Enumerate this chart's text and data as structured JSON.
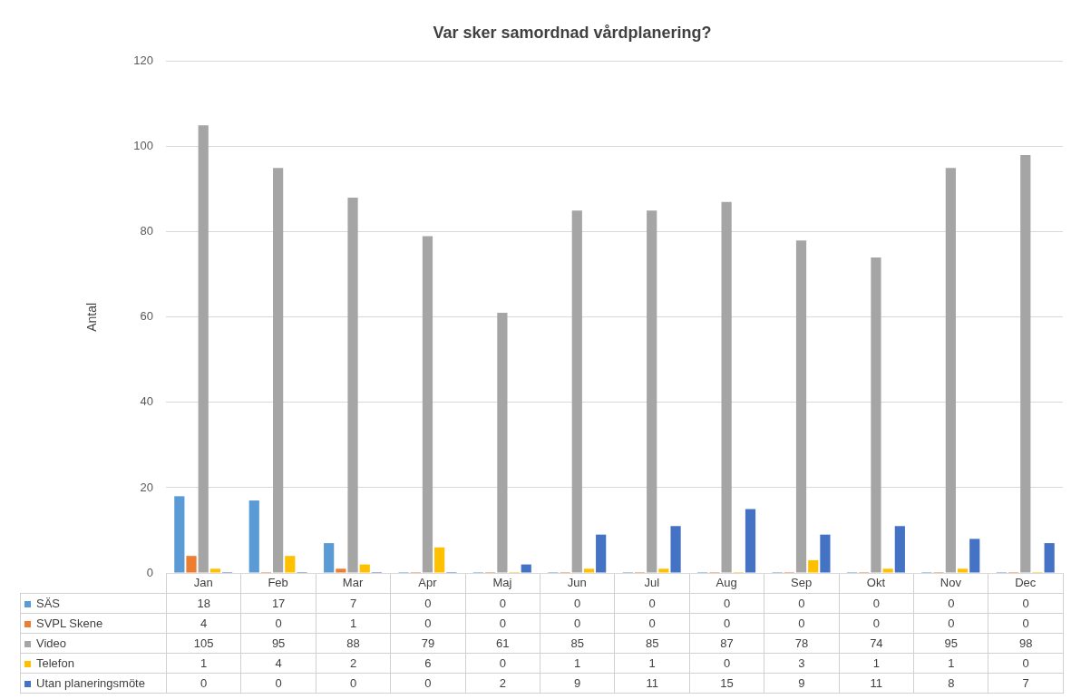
{
  "chart_data": {
    "type": "bar",
    "title": "Var sker samordnad vårdplanering?",
    "ylabel": "Antal",
    "categories": [
      "Jan",
      "Feb",
      "Mar",
      "Apr",
      "Maj",
      "Jun",
      "Jul",
      "Aug",
      "Sep",
      "Okt",
      "Nov",
      "Dec"
    ],
    "series": [
      {
        "name": "SÄS",
        "color": "#5b9bd5",
        "values": [
          18,
          17,
          7,
          0,
          0,
          0,
          0,
          0,
          0,
          0,
          0,
          0
        ]
      },
      {
        "name": "SVPL Skene",
        "color": "#ed7d31",
        "values": [
          4,
          0,
          1,
          0,
          0,
          0,
          0,
          0,
          0,
          0,
          0,
          0
        ]
      },
      {
        "name": "Video",
        "color": "#a5a5a5",
        "values": [
          105,
          95,
          88,
          79,
          61,
          85,
          85,
          87,
          78,
          74,
          95,
          98
        ]
      },
      {
        "name": "Telefon",
        "color": "#ffc000",
        "values": [
          1,
          4,
          2,
          6,
          0,
          1,
          1,
          0,
          3,
          1,
          1,
          0
        ]
      },
      {
        "name": "Utan planeringsmöte",
        "color": "#4472c4",
        "values": [
          0,
          0,
          0,
          0,
          2,
          9,
          11,
          15,
          9,
          11,
          8,
          7
        ]
      }
    ],
    "ylim": [
      0,
      120
    ],
    "yticks": [
      0,
      20,
      40,
      60,
      80,
      100,
      120
    ],
    "grid": "y",
    "legend": "bottom",
    "data_labels": true
  }
}
